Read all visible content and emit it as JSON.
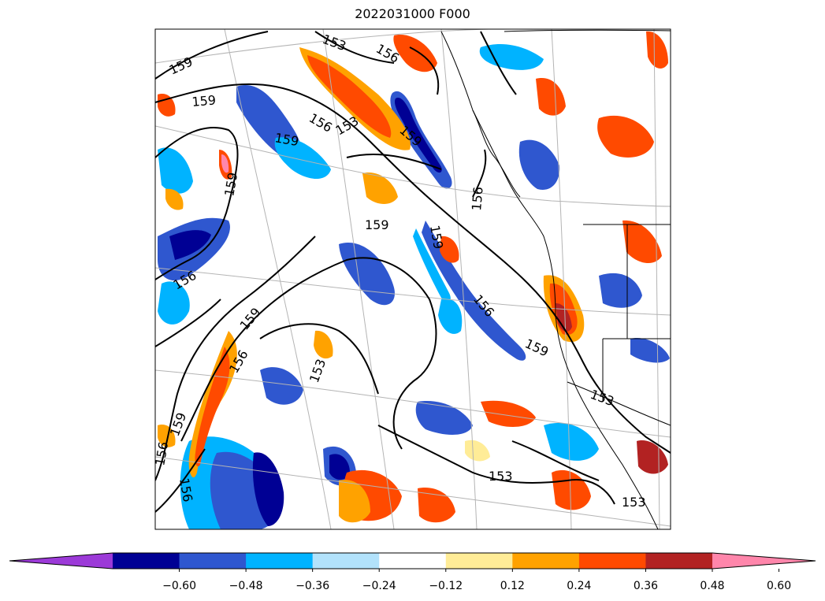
{
  "title": "2022031000 F000",
  "contour_labels": [
    "159",
    "153",
    "156",
    "159",
    "156",
    "159",
    "153",
    "159",
    "159",
    "156",
    "159",
    "159",
    "156",
    "156",
    "159",
    "159",
    "153",
    "156",
    "153",
    "159",
    "156",
    "156",
    "153",
    "153"
  ],
  "colorbar": {
    "colors": [
      "#9c3ad8",
      "#000094",
      "#2f57cf",
      "#00b3ff",
      "#b2e2fb",
      "#ffffff",
      "#ffec97",
      "#ffa200",
      "#ff4a00",
      "#b22222",
      "#ff86ab"
    ],
    "tick_labels": [
      "−0.60",
      "−0.48",
      "−0.36",
      "−0.24",
      "−0.12",
      "0.12",
      "0.24",
      "0.36",
      "0.48",
      "0.60"
    ]
  },
  "colors": {
    "frame": "#000000",
    "grid": "#b4b4b4",
    "contour": "#000000"
  }
}
